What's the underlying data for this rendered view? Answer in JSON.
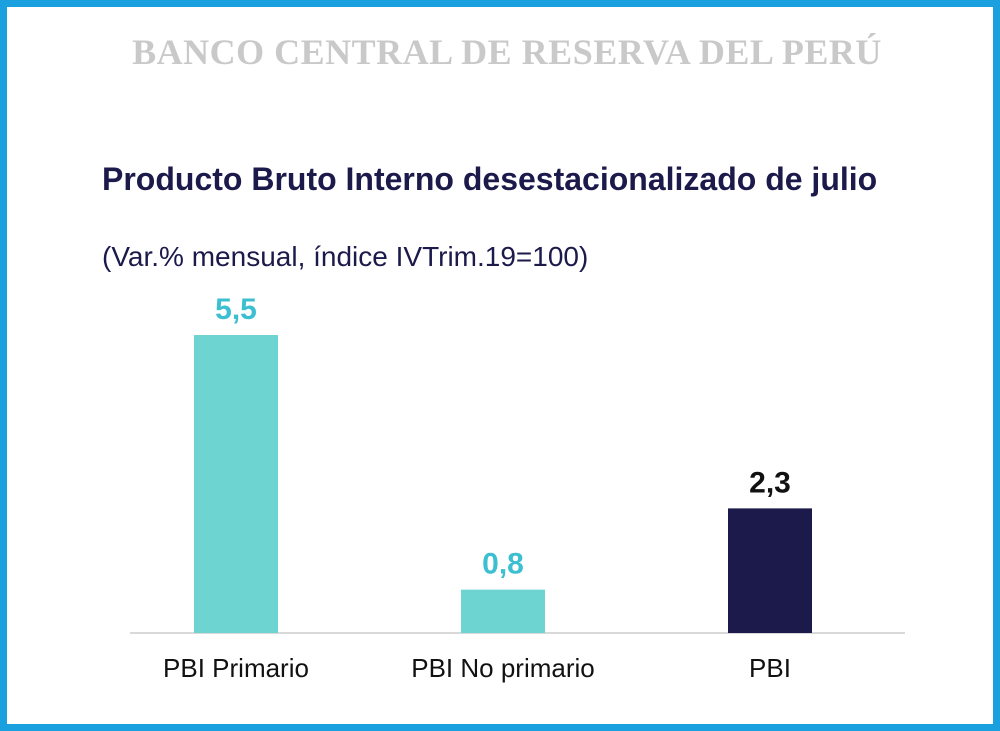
{
  "header": {
    "bank_name": "BANCO CENTRAL DE RESERVA DEL PERÚ"
  },
  "chart_data": {
    "type": "bar",
    "title": "Producto Bruto Interno desestacionalizado de julio",
    "subtitle": "(Var.% mensual, índice IVTrim.19=100)",
    "categories": [
      "PBI Primario",
      "PBI No primario",
      "PBI"
    ],
    "values": [
      5.5,
      0.8,
      2.3
    ],
    "value_labels": [
      "5,5",
      "0,8",
      "2,3"
    ],
    "bar_colors": [
      "#6dd4d2",
      "#6dd4d2",
      "#1b1a4a"
    ],
    "label_colors": [
      "#3cbfd0",
      "#3cbfd0",
      "#111111"
    ],
    "ylim": [
      0,
      5.5
    ],
    "grid": false,
    "legend": "none"
  }
}
